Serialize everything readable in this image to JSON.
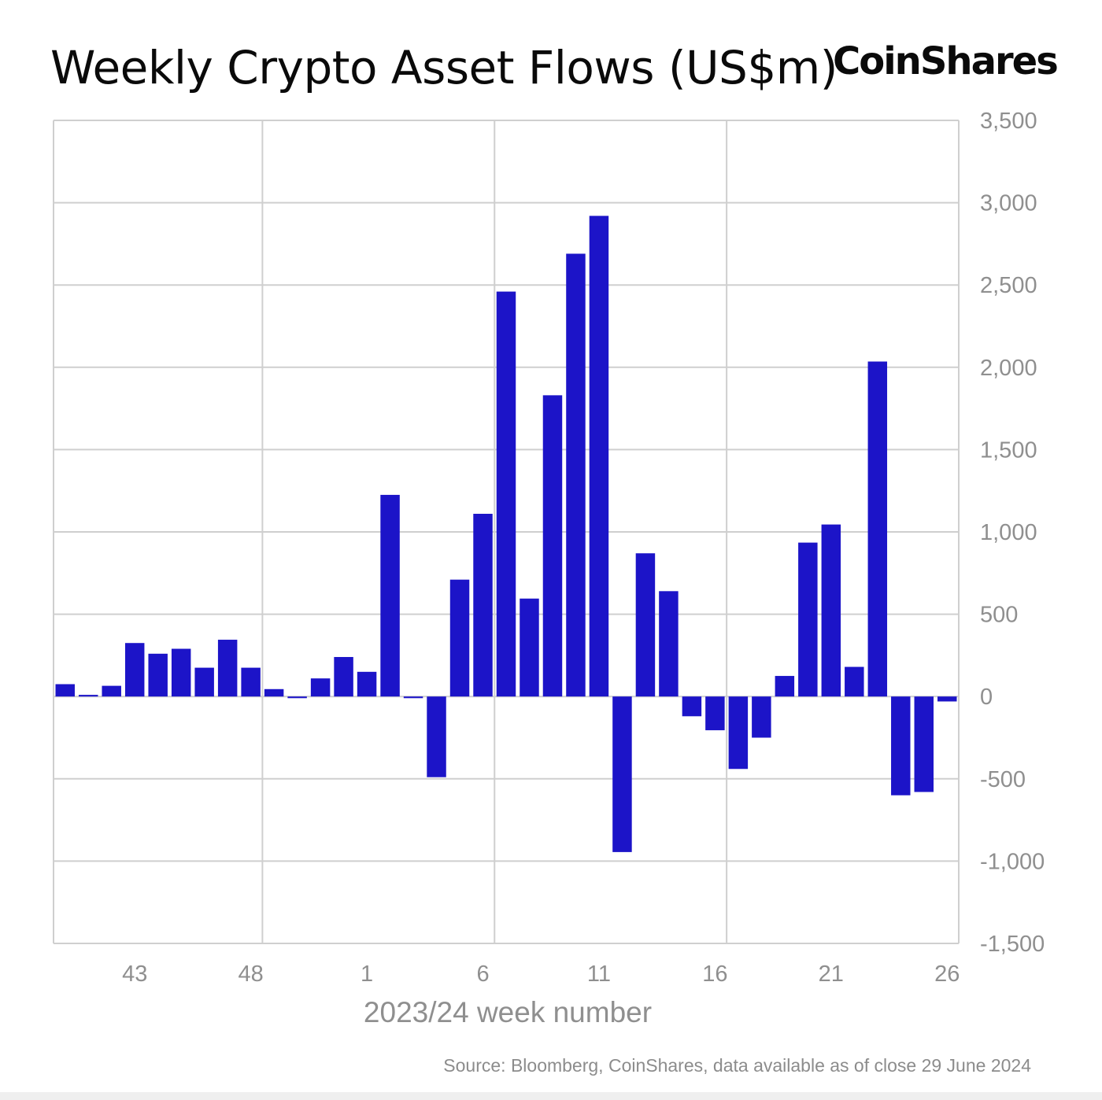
{
  "title": "Weekly Crypto Asset Flows (US$m)",
  "brand": "CoinShares",
  "source": "Source: Bloomberg, CoinShares, data available as of close 29 June 2024",
  "colors": {
    "bar": "#1c14c8",
    "grid": "#cfcfcf",
    "tick_text": "#8f8f8f"
  },
  "chart_data": {
    "type": "bar",
    "title": "Weekly Crypto Asset Flows (US$m)",
    "xlabel": "2023/24 week number",
    "ylabel": "",
    "ylim": [
      -1500,
      3500
    ],
    "yticks": [
      3500,
      3000,
      2500,
      2000,
      1500,
      1000,
      500,
      0,
      -500,
      -1000,
      -1500
    ],
    "ytick_labels": [
      "3,500",
      "3,000",
      "2,500",
      "2,000",
      "1,500",
      "1,000",
      "500",
      "0",
      "-500",
      "-1,000",
      "-1,500"
    ],
    "xtick_labels": [
      "43",
      "48",
      "1",
      "6",
      "11",
      "16",
      "21",
      "26"
    ],
    "y_axis_position": "right",
    "grid": true,
    "categories": [
      "40",
      "41",
      "42",
      "43",
      "44",
      "45",
      "46",
      "47",
      "48",
      "49",
      "50",
      "51",
      "52",
      "1",
      "2",
      "3",
      "4",
      "5",
      "6",
      "7",
      "8",
      "9",
      "10",
      "11",
      "12",
      "13",
      "14",
      "15",
      "16",
      "17",
      "18",
      "19",
      "20",
      "21",
      "22",
      "23",
      "24",
      "25",
      "26"
    ],
    "values": [
      75,
      10,
      65,
      325,
      260,
      290,
      175,
      345,
      175,
      45,
      -10,
      110,
      240,
      150,
      1225,
      -10,
      -490,
      710,
      1110,
      2460,
      595,
      1830,
      2690,
      2920,
      -945,
      870,
      640,
      -120,
      -205,
      -440,
      -250,
      125,
      935,
      1045,
      180,
      2035,
      -600,
      -580,
      -30
    ]
  }
}
